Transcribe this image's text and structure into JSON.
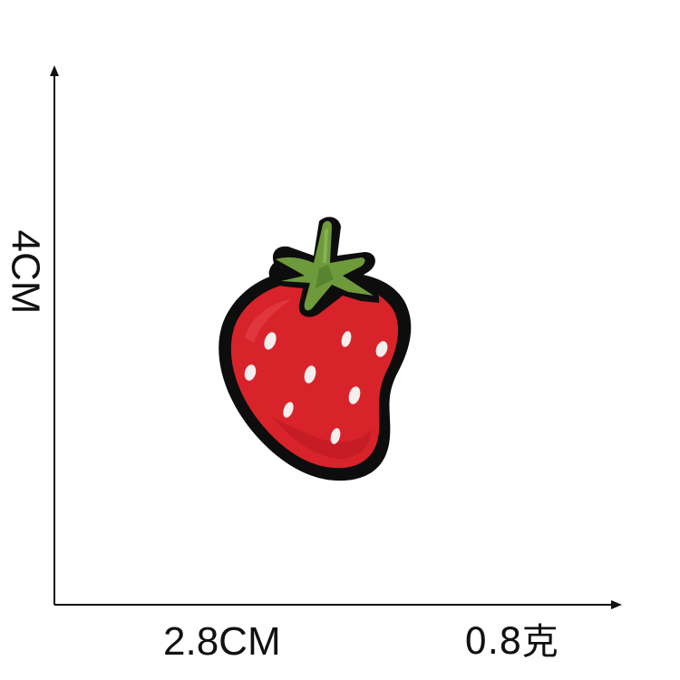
{
  "dimensions": {
    "height": "4CM",
    "width": "2.8CM",
    "weight": "0.8克"
  },
  "product": {
    "icon": "strawberry-patch-icon",
    "colors": {
      "border": "#0d0d0d",
      "body": "#d8232a",
      "body_shade": "#b81820",
      "seeds": "#f4eeee",
      "leaves": "#6e9a3c",
      "leaves_dark": "#4f7a2a",
      "background": "#ffffff"
    }
  }
}
